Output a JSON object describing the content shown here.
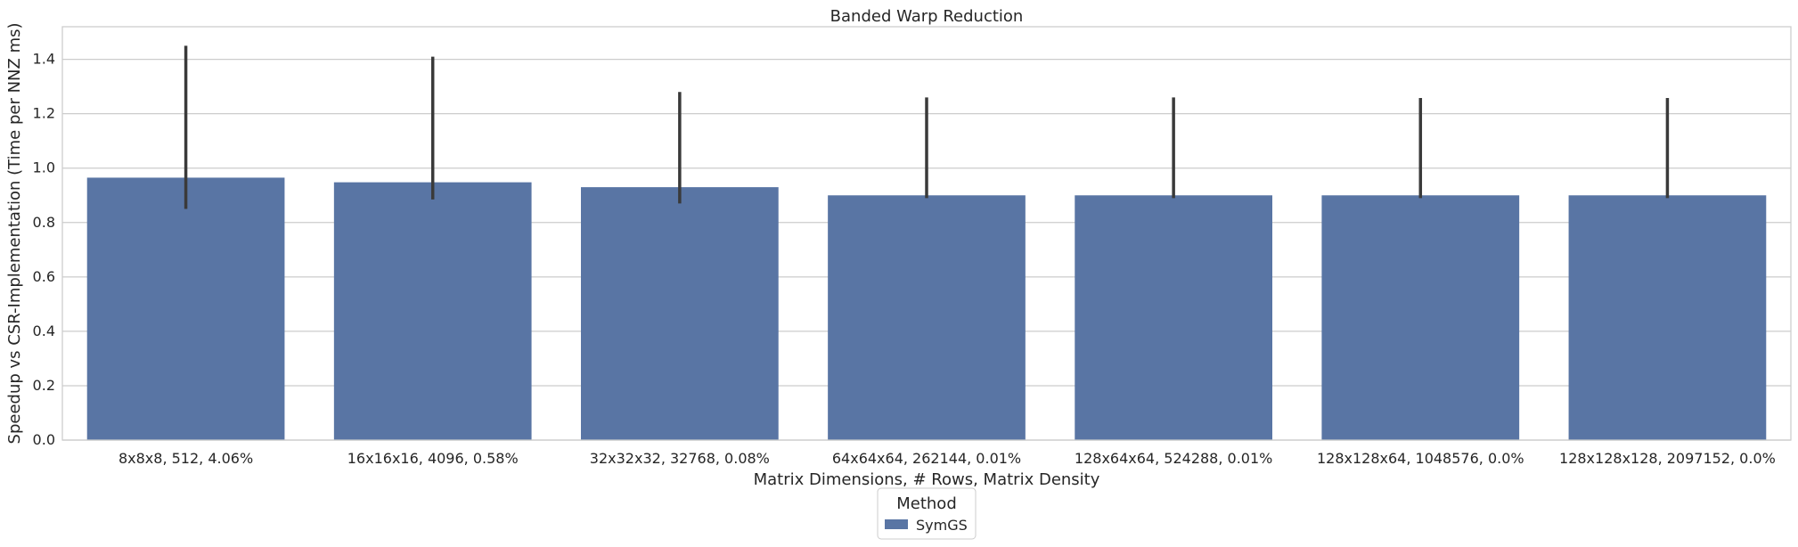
{
  "chart_data": {
    "type": "bar",
    "title": "Banded Warp Reduction",
    "xlabel": "Matrix Dimensions, # Rows, Matrix Density",
    "ylabel": "Speedup vs CSR-Implementation (Time per NNZ ms)",
    "categories": [
      "8x8x8, 512, 4.06%",
      "16x16x16, 4096, 0.58%",
      "32x32x32, 32768, 0.08%",
      "64x64x64, 262144, 0.01%",
      "128x64x64, 524288, 0.01%",
      "128x128x64, 1048576, 0.0%",
      "128x128x128, 2097152, 0.0%"
    ],
    "series": [
      {
        "name": "SymGS",
        "values": [
          0.965,
          0.948,
          0.93,
          0.9,
          0.9,
          0.9,
          0.9
        ],
        "error_low": [
          0.85,
          0.885,
          0.87,
          0.89,
          0.89,
          0.89,
          0.89
        ],
        "error_high": [
          1.45,
          1.41,
          1.28,
          1.26,
          1.26,
          1.258,
          1.258
        ],
        "color": "#5975a4"
      }
    ],
    "ylim": [
      0,
      1.52
    ],
    "yticks": [
      0.0,
      0.2,
      0.4,
      0.6,
      0.8,
      1.0,
      1.2,
      1.4
    ],
    "grid": true,
    "legend": {
      "title": "Method",
      "placement": "bottom-center"
    }
  }
}
